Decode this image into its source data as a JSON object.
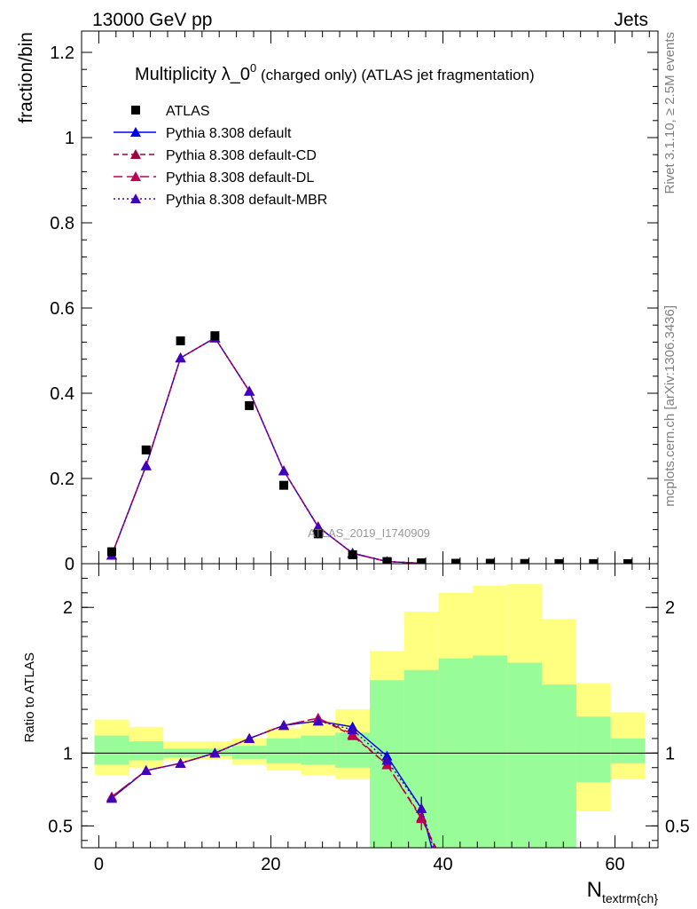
{
  "header": {
    "energy_label": "13000 GeV pp",
    "process_label": "Jets",
    "side_label_top": "Rivet 3.1.10, ≥ 2.5M events",
    "side_label_bottom": "mcplots.cern.ch [arXiv:1306.3436]",
    "watermark": "ATLAS_2019_I1740909"
  },
  "chart_data": [
    {
      "type": "scatter",
      "title_main": "Multiplicity λ_0",
      "title_sup": "0",
      "title_rest": " (charged only) (ATLAS jet fragmentation)",
      "ylabel": "fraction/bin",
      "xlim": [
        -2,
        65
      ],
      "ylim": [
        0,
        1.25
      ],
      "yticks": [
        0,
        0.2,
        0.4,
        0.6,
        0.8,
        1,
        1.2
      ],
      "ytick_labels": [
        "0",
        "0.2",
        "0.4",
        "0.6",
        "0.8",
        "1",
        "1.2"
      ],
      "legend": [
        {
          "name": "ATLAS",
          "color": "#000000",
          "marker": "square",
          "dash": "none"
        },
        {
          "name": "Pythia 8.308 default",
          "color": "#0000ee",
          "marker": "triangle",
          "dash": "solid"
        },
        {
          "name": "Pythia 8.308 default-CD",
          "color": "#a0003c",
          "marker": "triangle",
          "dash": "dashed"
        },
        {
          "name": "Pythia 8.308 default-DL",
          "color": "#c00050",
          "marker": "triangle",
          "dash": "longdash"
        },
        {
          "name": "Pythia 8.308 default-MBR",
          "color": "#4000c0",
          "marker": "triangle",
          "dash": "dotted"
        }
      ],
      "data": {
        "x": [
          1.5,
          5.5,
          9.5,
          13.5,
          17.5,
          21.5,
          25.5,
          29.5,
          33.5,
          37.5,
          41.5,
          45.5,
          49.5,
          53.5,
          57.5,
          61.5
        ],
        "y": [
          0.028,
          0.267,
          0.523,
          0.535,
          0.371,
          0.184,
          0.07,
          0.021,
          0.005,
          0.002,
          0.001,
          0.001,
          0.0005,
          0.0003,
          0.0002,
          0.0001
        ]
      },
      "series": [
        {
          "name": "Pythia 8.308 default",
          "x": [
            1.5,
            5.5,
            9.5,
            13.5,
            17.5,
            21.5,
            25.5,
            29.5,
            33.5,
            37.5
          ],
          "y": [
            0.02,
            0.23,
            0.483,
            0.53,
            0.405,
            0.218,
            0.086,
            0.025,
            0.005,
            0.001
          ]
        },
        {
          "name": "Pythia 8.308 default-CD",
          "x": [
            1.5,
            5.5,
            9.5,
            13.5,
            17.5,
            21.5,
            25.5,
            29.5,
            33.5,
            37.5
          ],
          "y": [
            0.02,
            0.23,
            0.483,
            0.53,
            0.405,
            0.218,
            0.087,
            0.024,
            0.005,
            0.001
          ]
        },
        {
          "name": "Pythia 8.308 default-DL",
          "x": [
            1.5,
            5.5,
            9.5,
            13.5,
            17.5,
            21.5,
            25.5,
            29.5,
            33.5,
            37.5
          ],
          "y": [
            0.02,
            0.23,
            0.483,
            0.53,
            0.405,
            0.218,
            0.087,
            0.024,
            0.005,
            0.001
          ]
        },
        {
          "name": "Pythia 8.308 default-MBR",
          "x": [
            1.5,
            5.5,
            9.5,
            13.5,
            17.5,
            21.5,
            25.5,
            29.5,
            33.5,
            37.5
          ],
          "y": [
            0.02,
            0.23,
            0.483,
            0.53,
            0.405,
            0.218,
            0.086,
            0.025,
            0.005,
            0.001
          ]
        }
      ]
    },
    {
      "type": "line",
      "ylabel": "Ratio to ATLAS",
      "xlabel_main": "N",
      "xlabel_sub": "textrm{ch}",
      "xlim": [
        -2,
        65
      ],
      "ylim": [
        0.35,
        2.3
      ],
      "xticks": [
        0,
        20,
        40,
        60
      ],
      "xtick_labels": [
        "0",
        "20",
        "40",
        "60"
      ],
      "yticks": [
        0.5,
        1,
        2
      ],
      "ytick_labels": [
        "0.5",
        "1",
        "2"
      ],
      "bands": {
        "bin_edges": [
          -0.5,
          3.5,
          7.5,
          11.5,
          15.5,
          19.5,
          23.5,
          27.5,
          31.5,
          35.5,
          39.5,
          43.5,
          47.5,
          51.5,
          55.5,
          59.5,
          63.5
        ],
        "outer_low": [
          0.85,
          0.9,
          0.95,
          0.96,
          0.92,
          0.88,
          0.85,
          0.82,
          0.25,
          0.1,
          0.1,
          0.1,
          0.1,
          0.3,
          0.6,
          0.82,
          0.87
        ],
        "outer_high": [
          1.23,
          1.18,
          1.08,
          1.08,
          1.1,
          1.17,
          1.22,
          1.3,
          1.7,
          1.97,
          2.1,
          2.15,
          2.16,
          1.92,
          1.48,
          1.28,
          1.2
        ],
        "inner_low": [
          0.92,
          0.95,
          0.97,
          0.98,
          0.96,
          0.93,
          0.92,
          0.9,
          0.3,
          0.3,
          0.3,
          0.3,
          0.3,
          0.3,
          0.8,
          0.93,
          0.93
        ],
        "inner_high": [
          1.12,
          1.08,
          1.03,
          1.03,
          1.05,
          1.1,
          1.12,
          1.14,
          1.5,
          1.57,
          1.65,
          1.67,
          1.62,
          1.47,
          1.25,
          1.1,
          1.1
        ]
      },
      "reference_line": 1,
      "series": [
        {
          "name": "Pythia 8.308 default",
          "x": [
            1.5,
            5.5,
            9.5,
            13.5,
            17.5,
            21.5,
            25.5,
            29.5,
            33.5,
            37.5,
            38.7
          ],
          "y": [
            0.69,
            0.88,
            0.93,
            1.0,
            1.1,
            1.19,
            1.22,
            1.18,
            0.98,
            0.62,
            0.35
          ]
        },
        {
          "name": "Pythia 8.308 default-CD",
          "x": [
            1.5,
            5.5,
            9.5,
            13.5,
            17.5,
            21.5,
            25.5,
            29.5,
            33.5,
            37.5,
            39.1
          ],
          "y": [
            0.7,
            0.88,
            0.93,
            1.0,
            1.1,
            1.19,
            1.24,
            1.12,
            0.92,
            0.56,
            0.35
          ]
        },
        {
          "name": "Pythia 8.308 default-DL",
          "x": [
            1.5,
            5.5,
            9.5,
            13.5,
            17.5,
            21.5,
            25.5,
            29.5,
            33.5,
            37.5,
            39.2
          ],
          "y": [
            0.7,
            0.88,
            0.93,
            1.0,
            1.1,
            1.19,
            1.24,
            1.13,
            0.92,
            0.55,
            0.35
          ]
        },
        {
          "name": "Pythia 8.308 default-MBR",
          "x": [
            1.5,
            5.5,
            9.5,
            13.5,
            17.5,
            21.5,
            25.5,
            29.5,
            33.5,
            37.5,
            38.9
          ],
          "y": [
            0.69,
            0.88,
            0.93,
            1.0,
            1.1,
            1.19,
            1.22,
            1.16,
            0.95,
            0.62,
            0.35
          ]
        }
      ]
    }
  ]
}
